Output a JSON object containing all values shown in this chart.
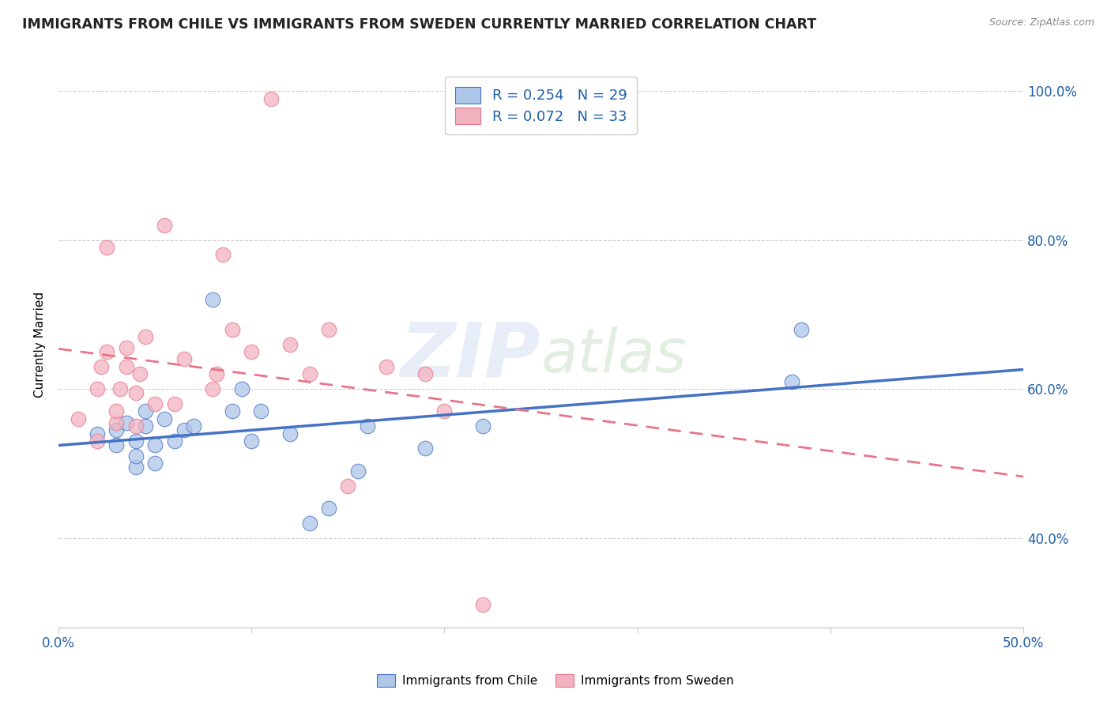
{
  "title": "IMMIGRANTS FROM CHILE VS IMMIGRANTS FROM SWEDEN CURRENTLY MARRIED CORRELATION CHART",
  "source": "Source: ZipAtlas.com",
  "ylabel": "Currently Married",
  "xlim": [
    0.0,
    0.5
  ],
  "ylim": [
    0.28,
    1.04
  ],
  "xticks": [
    0.0,
    0.1,
    0.2,
    0.3,
    0.4,
    0.5
  ],
  "xtick_labels": [
    "0.0%",
    "",
    "",
    "",
    "",
    "50.0%"
  ],
  "ytick_labels": [
    "40.0%",
    "60.0%",
    "80.0%",
    "100.0%"
  ],
  "yticks": [
    0.4,
    0.6,
    0.8,
    1.0
  ],
  "R_chile": 0.254,
  "N_chile": 29,
  "R_sweden": 0.072,
  "N_sweden": 33,
  "chile_color": "#aec6e8",
  "sweden_color": "#f2b3c0",
  "chile_line_color": "#4472c4",
  "sweden_line_color": "#e8748a",
  "legend_color": "#1f5fa6",
  "watermark": "ZIPAtlas",
  "chile_x": [
    0.02,
    0.03,
    0.03,
    0.035,
    0.04,
    0.04,
    0.04,
    0.045,
    0.045,
    0.05,
    0.05,
    0.055,
    0.06,
    0.065,
    0.07,
    0.08,
    0.09,
    0.095,
    0.1,
    0.105,
    0.12,
    0.13,
    0.14,
    0.155,
    0.16,
    0.19,
    0.22,
    0.38,
    0.385
  ],
  "chile_y": [
    0.54,
    0.525,
    0.545,
    0.555,
    0.495,
    0.51,
    0.53,
    0.55,
    0.57,
    0.5,
    0.525,
    0.56,
    0.53,
    0.545,
    0.55,
    0.72,
    0.57,
    0.6,
    0.53,
    0.57,
    0.54,
    0.42,
    0.44,
    0.49,
    0.55,
    0.52,
    0.55,
    0.61,
    0.68
  ],
  "sweden_x": [
    0.01,
    0.02,
    0.02,
    0.022,
    0.025,
    0.025,
    0.03,
    0.03,
    0.032,
    0.035,
    0.035,
    0.04,
    0.04,
    0.042,
    0.045,
    0.05,
    0.055,
    0.06,
    0.065,
    0.08,
    0.082,
    0.085,
    0.09,
    0.1,
    0.11,
    0.12,
    0.13,
    0.14,
    0.15,
    0.17,
    0.19,
    0.2,
    0.22
  ],
  "sweden_y": [
    0.56,
    0.53,
    0.6,
    0.63,
    0.65,
    0.79,
    0.555,
    0.57,
    0.6,
    0.63,
    0.655,
    0.55,
    0.595,
    0.62,
    0.67,
    0.58,
    0.82,
    0.58,
    0.64,
    0.6,
    0.62,
    0.78,
    0.68,
    0.65,
    0.99,
    0.66,
    0.62,
    0.68,
    0.47,
    0.63,
    0.62,
    0.57,
    0.31
  ]
}
